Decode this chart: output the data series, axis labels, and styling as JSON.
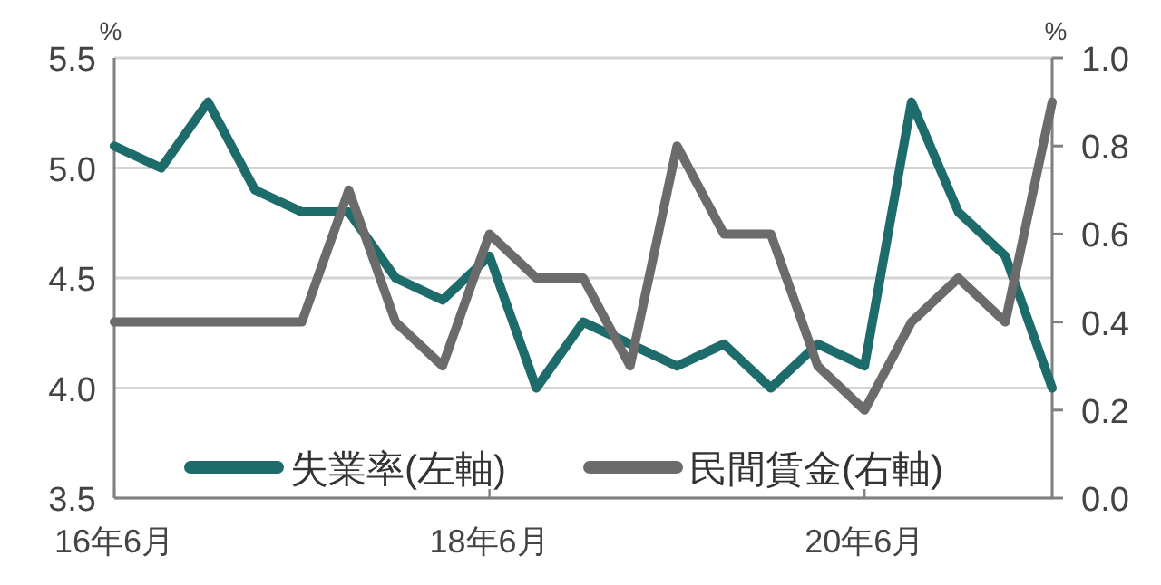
{
  "chart_data": {
    "type": "line",
    "categories": [
      "16年6月",
      null,
      null,
      null,
      null,
      null,
      null,
      null,
      "18年6月",
      null,
      null,
      null,
      null,
      null,
      null,
      null,
      "20年6月",
      null,
      null,
      null,
      null
    ],
    "series": [
      {
        "name": "失業率(左軸)",
        "color": "#1d6b6b",
        "values": [
          5.1,
          5.0,
          5.3,
          4.9,
          4.8,
          4.8,
          4.5,
          4.4,
          4.6,
          4.0,
          4.3,
          4.2,
          4.1,
          4.2,
          4.0,
          4.2,
          4.1,
          5.3,
          4.8,
          4.6,
          4.0
        ]
      },
      {
        "name": "民間賃金(右軸)",
        "color": "#6b6b6b",
        "axis": "y2",
        "values": [
          0.4,
          0.4,
          0.4,
          0.4,
          0.4,
          0.7,
          0.4,
          0.3,
          0.6,
          0.5,
          0.5,
          0.3,
          0.8,
          0.6,
          0.6,
          0.3,
          0.2,
          0.4,
          0.5,
          0.4,
          0.9
        ]
      }
    ],
    "ylabel": "%",
    "y2label": "%",
    "ylim": [
      3.5,
      5.5
    ],
    "yticks": [
      {
        "value": 3.5,
        "label": "3.5"
      },
      {
        "value": 4,
        "label": "4.0"
      },
      {
        "value": 4.5,
        "label": "4.5"
      },
      {
        "value": 5,
        "label": "5.0"
      },
      {
        "value": 5.5,
        "label": "5.5"
      }
    ],
    "y2lim": [
      0,
      1
    ],
    "y2ticks": [
      {
        "value": 0,
        "label": "0.0"
      },
      {
        "value": 0.2,
        "label": "0.2"
      },
      {
        "value": 0.4,
        "label": "0.4"
      },
      {
        "value": 0.6,
        "label": "0.6"
      },
      {
        "value": 0.8,
        "label": "0.8"
      },
      {
        "value": 1,
        "label": "1.0"
      }
    ],
    "grid": "y",
    "legend": "bottom",
    "line_style": "solid",
    "marker": "none"
  }
}
